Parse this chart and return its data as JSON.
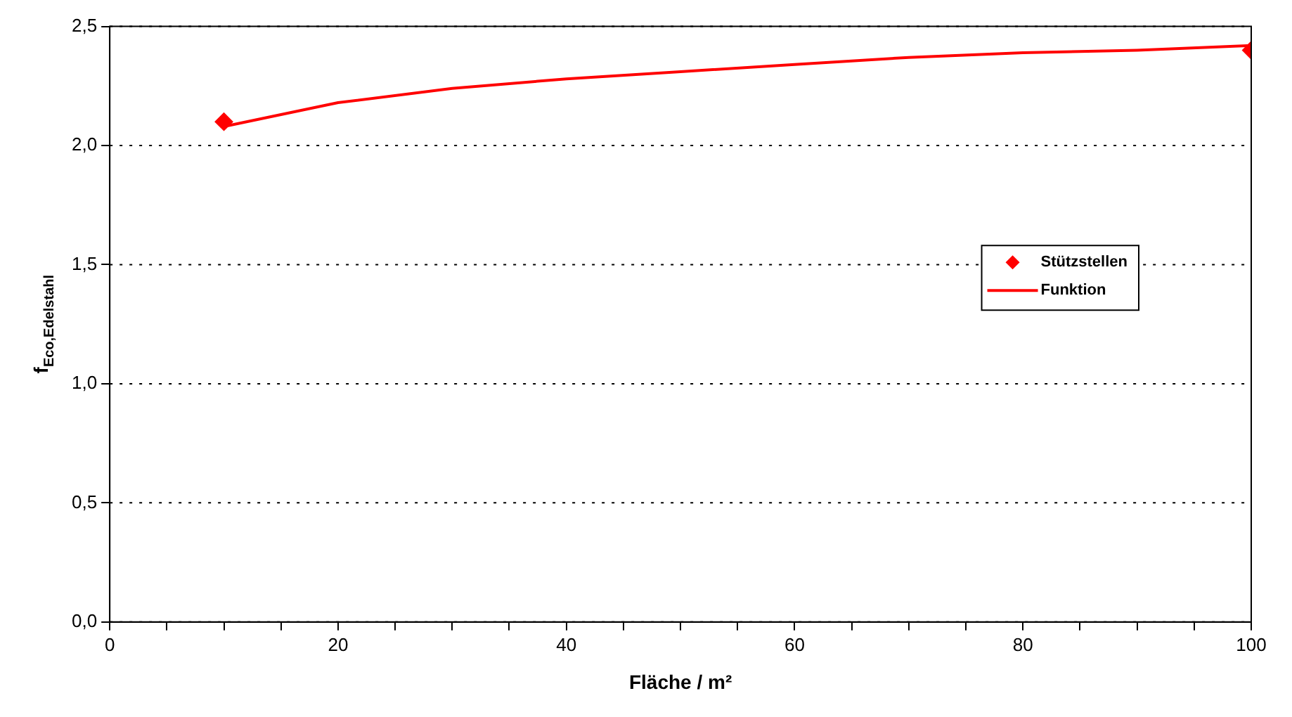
{
  "chart_data": {
    "type": "line",
    "xlabel": "Fläche / m²",
    "ylabel": "f$_{Eco,Edelstahl}$",
    "xlim": [
      0,
      100
    ],
    "xticks": [
      0,
      {
        "value": 5,
        "label": null
      },
      {
        "value": 10,
        "label": null
      },
      {
        "value": 15,
        "label": null
      },
      20,
      {
        "value": 25,
        "label": null
      },
      {
        "value": 30,
        "label": null
      },
      {
        "value": 35,
        "label": null
      },
      40,
      {
        "value": 45,
        "label": null
      },
      {
        "value": 50,
        "label": null
      },
      {
        "value": 55,
        "label": null
      },
      60,
      {
        "value": 65,
        "label": null
      },
      {
        "value": 70,
        "label": null
      },
      {
        "value": 75,
        "label": null
      },
      80,
      {
        "value": 85,
        "label": null
      },
      {
        "value": 90,
        "label": null
      },
      {
        "value": 95,
        "label": null
      },
      100
    ],
    "ylim": [
      0,
      2.5
    ],
    "yticks": [
      {
        "value": 0,
        "label": "0,0"
      },
      {
        "value": 0.5,
        "label": "0,5"
      },
      {
        "value": 1,
        "label": "1,0"
      },
      {
        "value": 1.5,
        "label": "1,5"
      },
      {
        "value": 2,
        "label": "2,0"
      },
      {
        "value": 2.5,
        "label": "2,5"
      }
    ],
    "grid": "y",
    "legend": "right",
    "series": [
      {
        "name": "Stützstellen",
        "type": "scatter",
        "marker": "diamond",
        "color": "#ff0000",
        "x": [
          10,
          100
        ],
        "values": [
          2.1,
          2.4
        ]
      },
      {
        "name": "Funktion",
        "type": "line",
        "marker": "none",
        "line_style": "solid",
        "color": "#ff0000",
        "x": [
          10,
          20,
          30,
          40,
          50,
          60,
          70,
          80,
          90,
          100
        ],
        "values": [
          2.08,
          2.18,
          2.24,
          2.28,
          2.31,
          2.34,
          2.37,
          2.39,
          2.4,
          2.42
        ]
      }
    ]
  }
}
